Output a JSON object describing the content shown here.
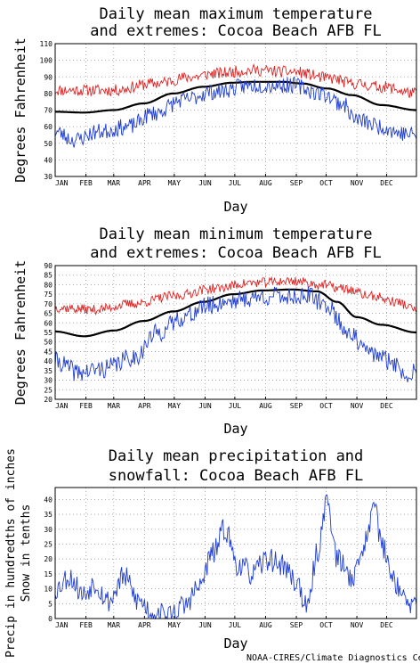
{
  "credit": "NOAA-CIRES/Climate Diagnostics Ce",
  "chart_data": [
    {
      "type": "line",
      "title": [
        "Daily mean maximum temperature",
        "and extremes: Cocoa Beach AFB FL"
      ],
      "xlabel": "Day",
      "ylabel": "Degrees Fahrenheit",
      "x_tick_labels": [
        "JAN",
        "FEB",
        "MAR",
        "APR",
        "MAY",
        "JUN",
        "JUL",
        "AUG",
        "SEP",
        "OCT",
        "NOV",
        "DEC"
      ],
      "y_ticks": [
        30,
        40,
        50,
        60,
        70,
        80,
        90,
        100,
        110
      ],
      "ylim": [
        30,
        110
      ],
      "xlim": [
        1,
        365
      ],
      "grid": true,
      "series": [
        {
          "role": "extreme-high",
          "color": "#e02020",
          "anchors": [
            [
              1,
              82
            ],
            [
              60,
              82
            ],
            [
              100,
              86
            ],
            [
              140,
              90
            ],
            [
              160,
              92
            ],
            [
              200,
              94
            ],
            [
              240,
              93
            ],
            [
              280,
              89
            ],
            [
              300,
              86
            ],
            [
              330,
              84
            ],
            [
              365,
              80
            ]
          ],
          "noise": 3.5,
          "seed": 11
        },
        {
          "role": "mean",
          "color": "#000000",
          "anchors": [
            [
              1,
              69
            ],
            [
              30,
              68.5
            ],
            [
              60,
              70
            ],
            [
              90,
              74
            ],
            [
              120,
              80
            ],
            [
              150,
              84
            ],
            [
              180,
              86.5
            ],
            [
              200,
              87
            ],
            [
              230,
              87
            ],
            [
              250,
              86
            ],
            [
              275,
              83
            ],
            [
              300,
              79
            ],
            [
              330,
              73
            ],
            [
              365,
              70
            ]
          ],
          "noise": 0,
          "seed": 1
        },
        {
          "role": "extreme-low",
          "color": "#1e3cd0",
          "anchors": [
            [
              1,
              57
            ],
            [
              20,
              52
            ],
            [
              45,
              57
            ],
            [
              75,
              60
            ],
            [
              100,
              68
            ],
            [
              130,
              76
            ],
            [
              160,
              81
            ],
            [
              200,
              85
            ],
            [
              240,
              85
            ],
            [
              270,
              80
            ],
            [
              290,
              74
            ],
            [
              305,
              64
            ],
            [
              330,
              60
            ],
            [
              350,
              56
            ],
            [
              365,
              55
            ]
          ],
          "noise": 5,
          "seed": 23
        }
      ]
    },
    {
      "type": "line",
      "title": [
        "Daily mean minimum temperature",
        "and extremes: Cocoa Beach AFB FL"
      ],
      "xlabel": "Day",
      "ylabel": "Degrees Fahrenheit",
      "x_tick_labels": [
        "JAN",
        "FEB",
        "MAR",
        "APR",
        "MAY",
        "JUN",
        "JUL",
        "AUG",
        "SEP",
        "OCT",
        "NOV",
        "DEC"
      ],
      "y_ticks": [
        20,
        25,
        30,
        35,
        40,
        45,
        50,
        55,
        60,
        65,
        70,
        75,
        80,
        85,
        90
      ],
      "ylim": [
        20,
        90
      ],
      "xlim": [
        1,
        365
      ],
      "grid": true,
      "series": [
        {
          "role": "extreme-high",
          "color": "#e02020",
          "anchors": [
            [
              1,
              68
            ],
            [
              40,
              67
            ],
            [
              80,
              70
            ],
            [
              120,
              74
            ],
            [
              160,
              78
            ],
            [
              200,
              81
            ],
            [
              240,
              82
            ],
            [
              270,
              80
            ],
            [
              290,
              78
            ],
            [
              320,
              74
            ],
            [
              345,
              71
            ],
            [
              365,
              67
            ]
          ],
          "noise": 2.5,
          "seed": 37
        },
        {
          "role": "mean",
          "color": "#000000",
          "anchors": [
            [
              1,
              55.5
            ],
            [
              30,
              53
            ],
            [
              60,
              56
            ],
            [
              90,
              61
            ],
            [
              120,
              66
            ],
            [
              150,
              71
            ],
            [
              180,
              75
            ],
            [
              210,
              77
            ],
            [
              240,
              77.5
            ],
            [
              265,
              76.5
            ],
            [
              285,
              71
            ],
            [
              305,
              63
            ],
            [
              330,
              59
            ],
            [
              365,
              55
            ]
          ],
          "noise": 0,
          "seed": 2
        },
        {
          "role": "extreme-low",
          "color": "#1e3cd0",
          "anchors": [
            [
              1,
              40
            ],
            [
              25,
              34
            ],
            [
              50,
              36
            ],
            [
              80,
              42
            ],
            [
              105,
              55
            ],
            [
              130,
              63
            ],
            [
              155,
              69
            ],
            [
              180,
              72
            ],
            [
              220,
              74
            ],
            [
              255,
              74
            ],
            [
              275,
              69
            ],
            [
              295,
              56
            ],
            [
              315,
              45
            ],
            [
              340,
              40
            ],
            [
              355,
              32
            ],
            [
              365,
              38
            ]
          ],
          "noise": 5,
          "seed": 41
        }
      ]
    },
    {
      "type": "line",
      "title": [
        "Daily mean precipitation and",
        "snowfall: Cocoa Beach AFB FL"
      ],
      "xlabel": "Day",
      "ylabel": [
        "Precip in hundredths of inches",
        "Snow in tenths"
      ],
      "x_tick_labels": [
        "JAN",
        "FEB",
        "MAR",
        "APR",
        "MAY",
        "JUN",
        "JUL",
        "AUG",
        "SEP",
        "OCT",
        "NOV",
        "DEC"
      ],
      "y_ticks": [
        0,
        5,
        10,
        15,
        20,
        25,
        30,
        35,
        40
      ],
      "ylim": [
        0,
        44
      ],
      "xlim": [
        1,
        365
      ],
      "grid": true,
      "series": [
        {
          "role": "precip",
          "color": "#1e3cd0",
          "anchors": [
            [
              1,
              10
            ],
            [
              15,
              14
            ],
            [
              30,
              8
            ],
            [
              40,
              12
            ],
            [
              55,
              6
            ],
            [
              70,
              14
            ],
            [
              85,
              6
            ],
            [
              100,
              2
            ],
            [
              115,
              1
            ],
            [
              130,
              4
            ],
            [
              145,
              10
            ],
            [
              160,
              22
            ],
            [
              172,
              30
            ],
            [
              185,
              18
            ],
            [
              200,
              15
            ],
            [
              215,
              20
            ],
            [
              230,
              18
            ],
            [
              245,
              12
            ],
            [
              255,
              3
            ],
            [
              265,
              22
            ],
            [
              275,
              40
            ],
            [
              285,
              20
            ],
            [
              300,
              14
            ],
            [
              315,
              26
            ],
            [
              322,
              42
            ],
            [
              330,
              24
            ],
            [
              345,
              12
            ],
            [
              355,
              5
            ],
            [
              365,
              4
            ]
          ],
          "noise": 4,
          "seed": 53
        },
        {
          "role": "snow",
          "color": "#e02020",
          "anchors": [
            [
              1,
              0
            ],
            [
              365,
              0
            ]
          ],
          "noise": 0,
          "seed": 3
        }
      ]
    }
  ]
}
